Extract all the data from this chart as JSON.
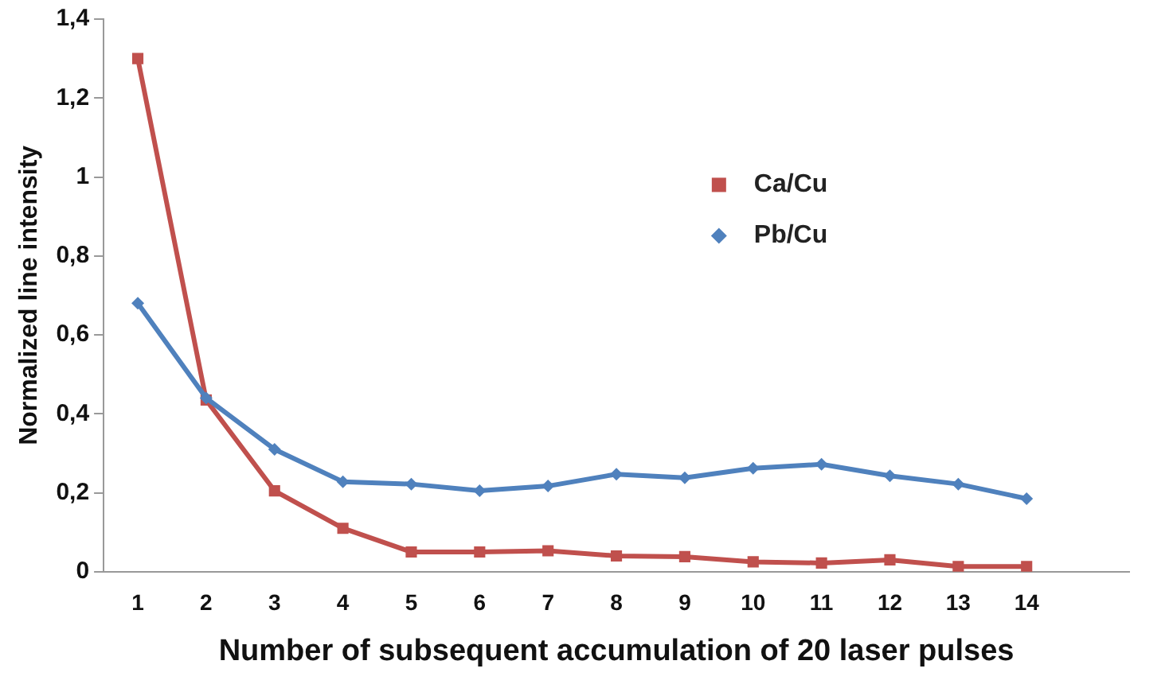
{
  "chart_data": {
    "type": "line",
    "xlabel": "Number of subsequent accumulation of 20 laser pulses",
    "ylabel": "Normalized line intensity",
    "categories": [
      "1",
      "2",
      "3",
      "4",
      "5",
      "6",
      "7",
      "8",
      "9",
      "10",
      "11",
      "12",
      "13",
      "14",
      null
    ],
    "series": [
      {
        "name": "Ca/Cu",
        "color": "#c0504d",
        "marker": "square",
        "values": [
          1.3,
          0.435,
          0.205,
          0.11,
          0.05,
          0.05,
          0.053,
          0.04,
          0.038,
          0.025,
          0.022,
          0.03,
          0.013,
          0.013,
          null
        ]
      },
      {
        "name": "Pb/Cu",
        "color": "#4f81bd",
        "marker": "diamond",
        "values": [
          0.68,
          0.44,
          0.31,
          0.228,
          0.222,
          0.205,
          0.217,
          0.247,
          0.238,
          0.262,
          0.272,
          0.243,
          0.222,
          0.185,
          null
        ]
      }
    ],
    "ylim": [
      0,
      1.4
    ],
    "yticks": [
      0,
      {
        "value": 0.2,
        "label": "0,2"
      },
      {
        "value": 0.4,
        "label": "0,4"
      },
      {
        "value": 0.6,
        "label": "0,6"
      },
      {
        "value": 0.8,
        "label": "0,8"
      },
      1,
      {
        "value": 1.2,
        "label": "1,2"
      },
      {
        "value": 1.4,
        "label": "1,4"
      }
    ],
    "grid": false,
    "legend": "right",
    "line_style": "solid"
  }
}
